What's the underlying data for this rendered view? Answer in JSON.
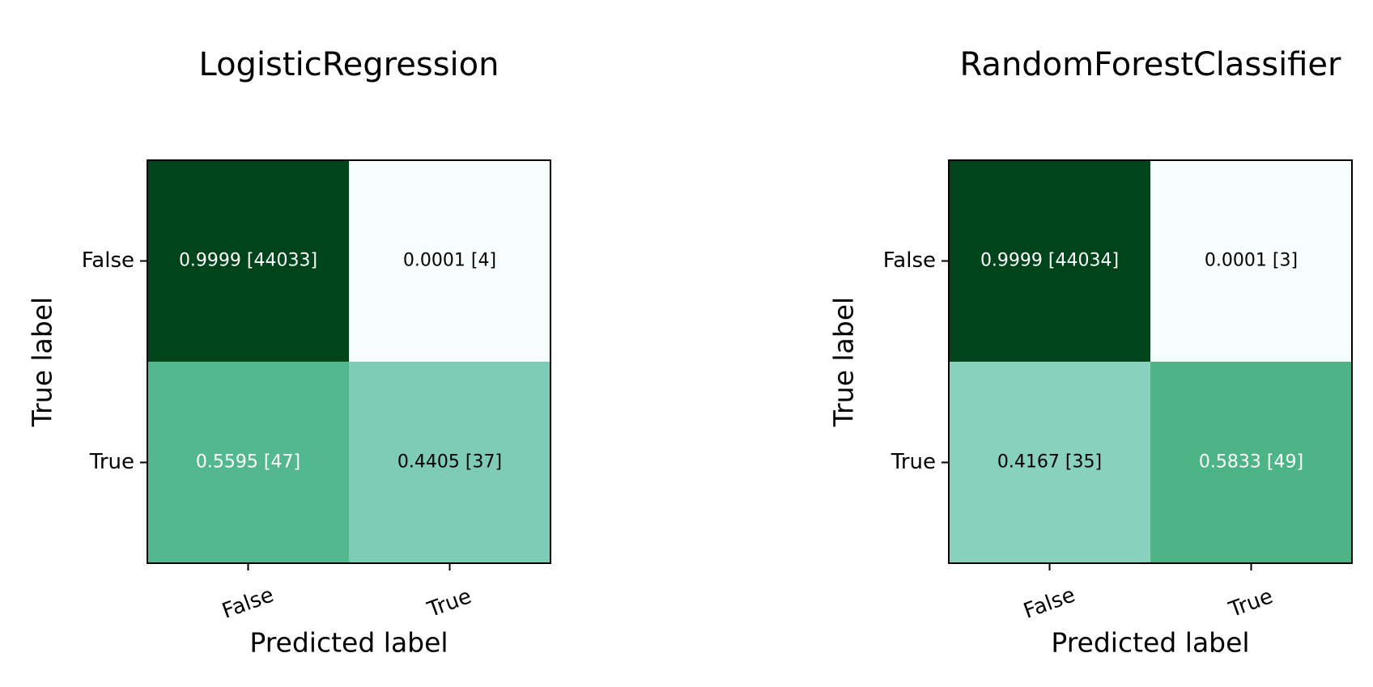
{
  "chart_data": [
    {
      "type": "heatmap",
      "title": "LogisticRegression",
      "xlabel": "Predicted label",
      "ylabel": "True label",
      "x_categories": [
        "False",
        "True"
      ],
      "y_categories": [
        "False",
        "True"
      ],
      "values": [
        [
          0.9999,
          0.0001
        ],
        [
          0.5595,
          0.4405
        ]
      ],
      "counts": [
        [
          44033,
          4
        ],
        [
          47,
          37
        ]
      ],
      "cell_labels": [
        [
          "0.9999 [44033]",
          "0.0001 [4]"
        ],
        [
          "0.5595 [47]",
          "0.4405 [37]"
        ]
      ],
      "colormap": "BuGn",
      "color_range": [
        0,
        1
      ],
      "grid": false
    },
    {
      "type": "heatmap",
      "title": "RandomForestClassifier",
      "xlabel": "Predicted label",
      "ylabel": "True label",
      "x_categories": [
        "False",
        "True"
      ],
      "y_categories": [
        "False",
        "True"
      ],
      "values": [
        [
          0.9999,
          0.0001
        ],
        [
          0.4167,
          0.5833
        ]
      ],
      "counts": [
        [
          44034,
          3
        ],
        [
          35,
          49
        ]
      ],
      "cell_labels": [
        [
          "0.9999 [44034]",
          "0.0001 [3]"
        ],
        [
          "0.4167 [35]",
          "0.5833 [49]"
        ]
      ],
      "colormap": "BuGn",
      "color_range": [
        0,
        1
      ],
      "grid": false
    }
  ],
  "colors": {
    "cmap_stops": [
      "#f7fcfd",
      "#e5f5f9",
      "#ccece6",
      "#99d8c9",
      "#66c2a4",
      "#41ae76",
      "#238b45",
      "#006d2c",
      "#00441b"
    ],
    "text_dark": "#000000",
    "text_light": "#ffffff",
    "frame": "#000000"
  }
}
